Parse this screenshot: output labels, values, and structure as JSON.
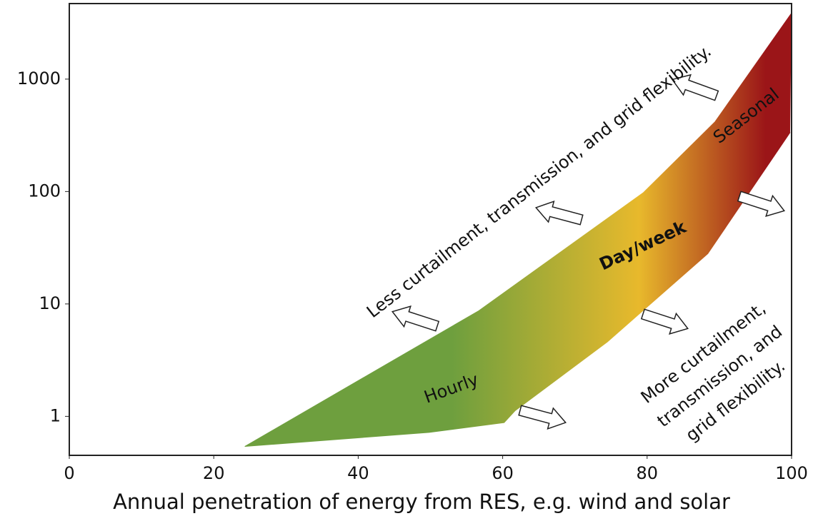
{
  "chart_data": {
    "type": "area",
    "x_label": "Annual penetration of energy from RES, e.g. wind and solar",
    "series": [
      {
        "x": [
          24.3,
          56.7,
          79.5,
          89.4,
          100
        ],
        "values": [
          0.54,
          8.7,
          98,
          417,
          3870
        ]
      },
      {
        "x": [
          24.3,
          49.8,
          60.2,
          61.7,
          74.5,
          88.4,
          99.8
        ],
        "values": [
          0.54,
          0.72,
          0.88,
          1.12,
          4.6,
          28,
          336
        ]
      }
    ],
    "gradient": [
      "#6e9f3e",
      "#e8b92c",
      "#9b1518"
    ],
    "xlim": [
      0,
      100
    ],
    "xticks": [
      0,
      20,
      40,
      60,
      80,
      100
    ],
    "ylim": [
      0.45,
      4700
    ],
    "yticks": [
      1,
      10,
      100,
      1000
    ],
    "log_y": true,
    "annotations": {
      "less": "Less curtailment, transmission, and grid flexibility.",
      "hourly": "Hourly",
      "dayweek": "Day/week",
      "seasonal": "Seasonal",
      "more": [
        "More curtailment,",
        "transmission, and",
        "grid flexibility."
      ]
    }
  }
}
